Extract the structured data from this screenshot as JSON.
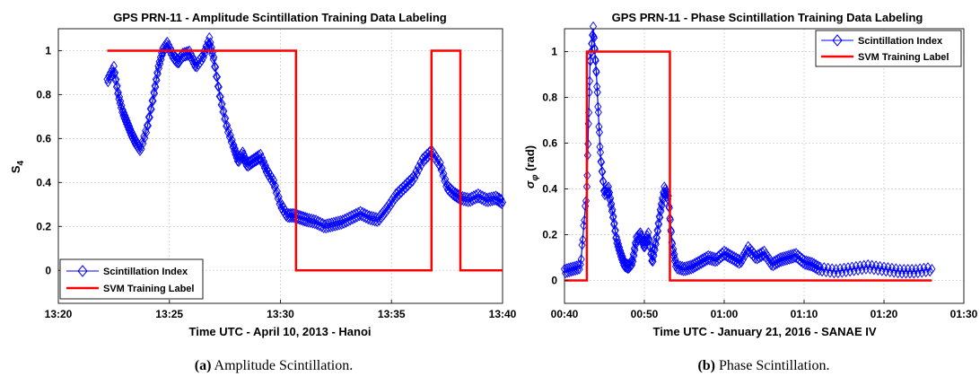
{
  "chart_data": [
    {
      "type": "line",
      "title": "GPS PRN-11 - Amplitude Scintillation Training Data Labeling",
      "xlabel": "Time UTC - April 10, 2013 - Hanoi",
      "ylabel_main": "S",
      "ylabel_sub": "4",
      "x_tick_labels": [
        "13:20",
        "13:25",
        "13:30",
        "13:35",
        "13:40"
      ],
      "x_ticks": [
        0,
        5,
        10,
        15,
        20
      ],
      "xlim": [
        0,
        20
      ],
      "y_ticks": [
        0,
        0.2,
        0.4,
        0.6,
        0.8,
        1
      ],
      "y_tick_labels": [
        "0",
        "0.2",
        "0.4",
        "0.6",
        "0.8",
        "1"
      ],
      "ylim": [
        -0.15,
        1.1
      ],
      "grid": true,
      "legend_position": "bottom-left",
      "series": [
        {
          "name": "Scintillation Index",
          "color": "#0000ff",
          "marker": "diamond",
          "x": [
            2.2,
            2.5,
            2.7,
            2.9,
            3.1,
            3.3,
            3.5,
            3.7,
            4.0,
            4.3,
            4.5,
            4.7,
            4.9,
            5.2,
            5.4,
            5.6,
            5.9,
            6.2,
            6.5,
            6.8,
            7.0,
            7.3,
            7.6,
            7.9,
            8.1,
            8.3,
            8.5,
            8.8,
            9.1,
            9.4,
            9.7,
            10.0,
            10.3,
            10.6,
            10.9,
            11.2,
            11.6,
            12.0,
            12.4,
            12.8,
            13.2,
            13.6,
            14.0,
            14.4,
            14.8,
            15.2,
            15.6,
            16.0,
            16.4,
            16.8,
            17.2,
            17.5,
            17.8,
            18.1,
            18.5,
            18.9,
            19.3,
            19.7,
            20.0
          ],
          "y": [
            0.86,
            0.92,
            0.8,
            0.72,
            0.67,
            0.62,
            0.58,
            0.55,
            0.65,
            0.8,
            0.92,
            1.0,
            1.03,
            0.97,
            0.95,
            0.98,
            0.99,
            0.93,
            0.97,
            1.05,
            0.96,
            0.78,
            0.65,
            0.56,
            0.5,
            0.53,
            0.48,
            0.5,
            0.52,
            0.45,
            0.4,
            0.3,
            0.25,
            0.25,
            0.24,
            0.23,
            0.22,
            0.2,
            0.21,
            0.22,
            0.24,
            0.26,
            0.24,
            0.23,
            0.28,
            0.34,
            0.38,
            0.42,
            0.5,
            0.54,
            0.48,
            0.38,
            0.35,
            0.33,
            0.32,
            0.34,
            0.32,
            0.33,
            0.31
          ]
        },
        {
          "name": "SVM Training Label",
          "color": "#ff0000",
          "x": [
            2.2,
            10.7,
            10.7,
            16.8,
            16.8,
            18.1,
            18.1,
            20.0
          ],
          "y": [
            1,
            1,
            0,
            0,
            1,
            1,
            0,
            0
          ]
        }
      ]
    },
    {
      "type": "line",
      "title": "GPS PRN-11 - Phase Scintillation Training Data Labeling",
      "xlabel": "Time UTC - January 21, 2016 - SANAE IV",
      "ylabel_main": "σ",
      "ylabel_sub": "φ",
      "ylabel_unit": "(rad)",
      "x_tick_labels": [
        "00:40",
        "00:50",
        "01:00",
        "01:10",
        "01:20",
        "01:30"
      ],
      "x_ticks": [
        40,
        50,
        60,
        70,
        80,
        90
      ],
      "xlim": [
        40,
        90
      ],
      "y_ticks": [
        0,
        0.2,
        0.4,
        0.6,
        0.8,
        1
      ],
      "y_tick_labels": [
        "0",
        "0.2",
        "0.4",
        "0.6",
        "0.8",
        "1"
      ],
      "ylim": [
        -0.1,
        1.1
      ],
      "grid": true,
      "legend_position": "top-right",
      "series": [
        {
          "name": "Scintillation Index",
          "color": "#0000ff",
          "marker": "diamond",
          "x": [
            40.0,
            41.0,
            42.0,
            42.8,
            43.2,
            43.6,
            44.0,
            44.5,
            45.0,
            45.5,
            46.0,
            46.5,
            47.0,
            47.5,
            48.0,
            48.5,
            49.0,
            49.5,
            50.0,
            50.5,
            51.0,
            51.5,
            52.0,
            52.5,
            53.0,
            53.5,
            54.0,
            55.0,
            56.0,
            57.0,
            58.0,
            59.0,
            60.0,
            61.0,
            62.0,
            63.0,
            64.0,
            65.0,
            66.0,
            67.0,
            68.0,
            69.0,
            70.0,
            71.0,
            72.0,
            74.0,
            76.0,
            78.0,
            80.0,
            82.0,
            84.0,
            86.0
          ],
          "y": [
            0.04,
            0.05,
            0.06,
            0.4,
            0.95,
            1.1,
            0.9,
            0.55,
            0.38,
            0.4,
            0.3,
            0.18,
            0.12,
            0.07,
            0.06,
            0.08,
            0.18,
            0.2,
            0.15,
            0.2,
            0.08,
            0.18,
            0.3,
            0.4,
            0.36,
            0.15,
            0.06,
            0.05,
            0.06,
            0.08,
            0.1,
            0.09,
            0.12,
            0.1,
            0.08,
            0.14,
            0.1,
            0.12,
            0.07,
            0.09,
            0.1,
            0.11,
            0.08,
            0.07,
            0.05,
            0.04,
            0.05,
            0.06,
            0.05,
            0.04,
            0.04,
            0.05
          ]
        },
        {
          "name": "SVM Training Label",
          "color": "#ff0000",
          "x": [
            40.0,
            42.8,
            42.8,
            53.2,
            53.2,
            86.0
          ],
          "y": [
            0,
            0,
            1,
            1,
            0,
            0
          ]
        }
      ]
    }
  ],
  "captions": [
    {
      "label": "(a)",
      "text": " Amplitude Scintillation."
    },
    {
      "label": "(b)",
      "text": " Phase Scintillation."
    }
  ]
}
